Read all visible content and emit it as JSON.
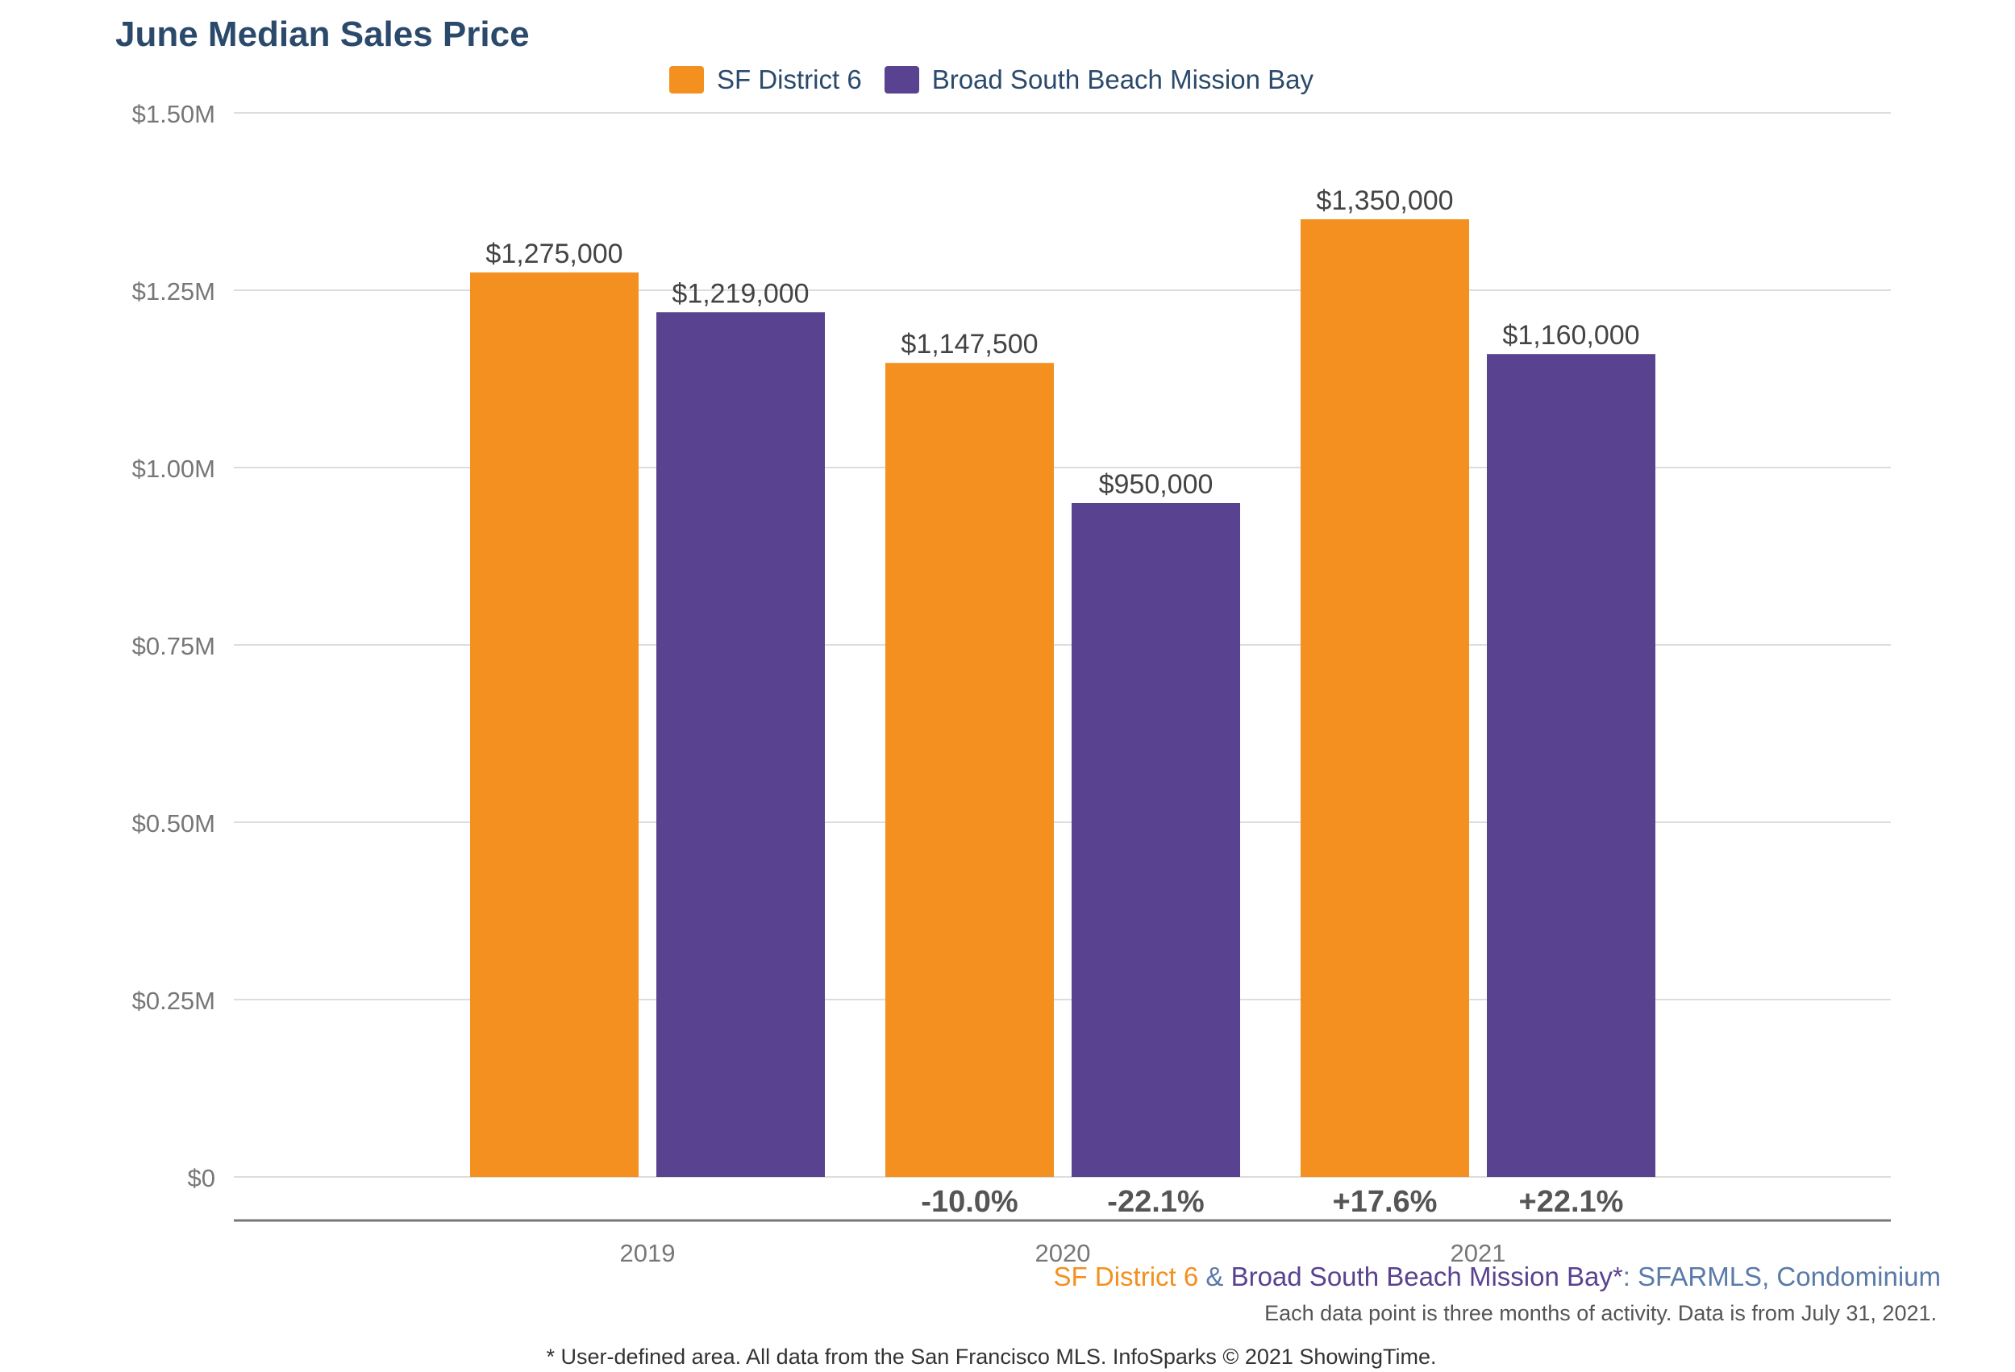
{
  "title": "June Median Sales Price",
  "colors": {
    "series1": "#f39020",
    "series2": "#594290",
    "title": "#2b4a6b",
    "grid": "#dddddd",
    "axis": "#777777",
    "tick_text": "#777777",
    "value_text": "#444444",
    "change_text": "#555555",
    "footer_blue": "#5a7aa8"
  },
  "chart_data": {
    "type": "bar",
    "title": "June Median Sales Price",
    "categories": [
      "2019",
      "2020",
      "2021"
    ],
    "series": [
      {
        "name": "SF District 6",
        "values": [
          1275000,
          1147500,
          1350000
        ],
        "value_labels": [
          "$1,275,000",
          "$1,147,500",
          "$1,350,000"
        ],
        "change_labels": [
          "",
          "-10.0%",
          "+17.6%"
        ]
      },
      {
        "name": "Broad South Beach Mission Bay",
        "values": [
          1219000,
          950000,
          1160000
        ],
        "value_labels": [
          "$1,219,000",
          "$950,000",
          "$1,160,000"
        ],
        "change_labels": [
          "",
          "-22.1%",
          "+22.1%"
        ]
      }
    ],
    "ylim": [
      0,
      1500000
    ],
    "yticks": [
      0,
      250000,
      500000,
      750000,
      1000000,
      1250000,
      1500000
    ],
    "ytick_labels": [
      "$0",
      "$0.25M",
      "$0.50M",
      "$0.75M",
      "$1.00M",
      "$1.25M",
      "$1.50M"
    ],
    "grid": true,
    "legend": "top-center"
  },
  "footer": {
    "series1_name": "SF District 6",
    "ampersand": " & ",
    "series2_name": "Broad South Beach Mission Bay*",
    "source_suffix": ": SFARMLS, Condominium",
    "note": "Each data point is three months of activity. Data is from July 31, 2021.",
    "disclaimer": "* User-defined area. All data from the San Francisco MLS. InfoSparks © 2021 ShowingTime."
  }
}
